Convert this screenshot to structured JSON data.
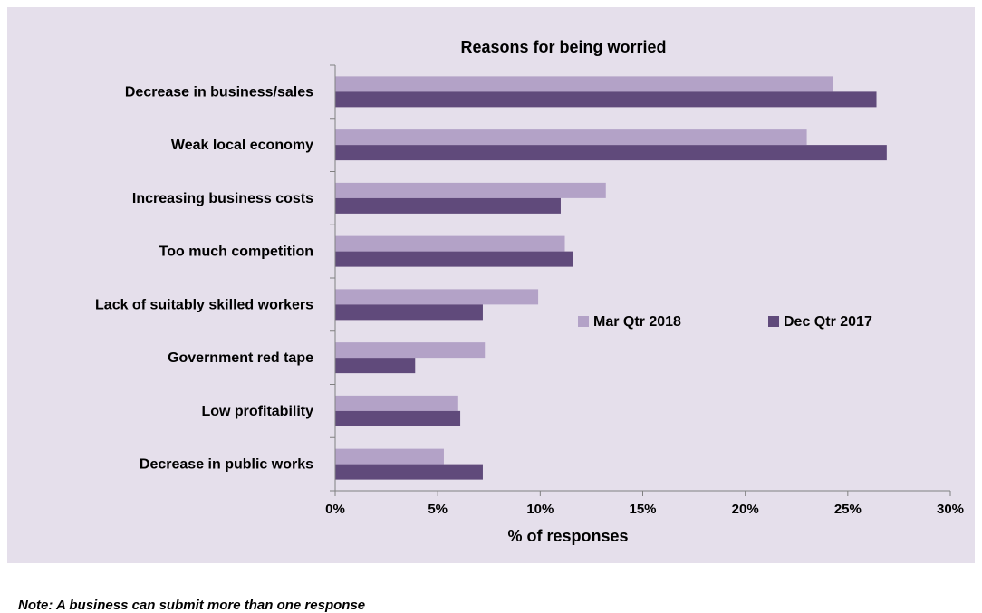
{
  "note": "Note: A business can submit more than one response",
  "chart_data": {
    "type": "bar",
    "orientation": "horizontal",
    "title": "Reasons for being worried",
    "xlabel": "% of responses",
    "ylabel": "",
    "xlim": [
      0,
      30
    ],
    "x_ticks": [
      "0%",
      "5%",
      "10%",
      "15%",
      "20%",
      "25%",
      "30%"
    ],
    "grid": false,
    "legend_position": "center-right",
    "categories": [
      "Decrease in business/sales",
      "Weak local economy",
      "Increasing business costs",
      "Too much competition",
      "Lack of suitably skilled workers",
      "Government red tape",
      "Low profitability",
      "Decrease in public works"
    ],
    "series": [
      {
        "name": "Mar Qtr 2018",
        "color": "#b3a2c7",
        "values": [
          24.3,
          23.0,
          13.2,
          11.2,
          9.9,
          7.3,
          6.0,
          5.3
        ]
      },
      {
        "name": "Dec Qtr 2017",
        "color": "#604a7b",
        "values": [
          26.4,
          26.9,
          11.0,
          11.6,
          7.2,
          3.9,
          6.1,
          7.2
        ]
      }
    ]
  }
}
